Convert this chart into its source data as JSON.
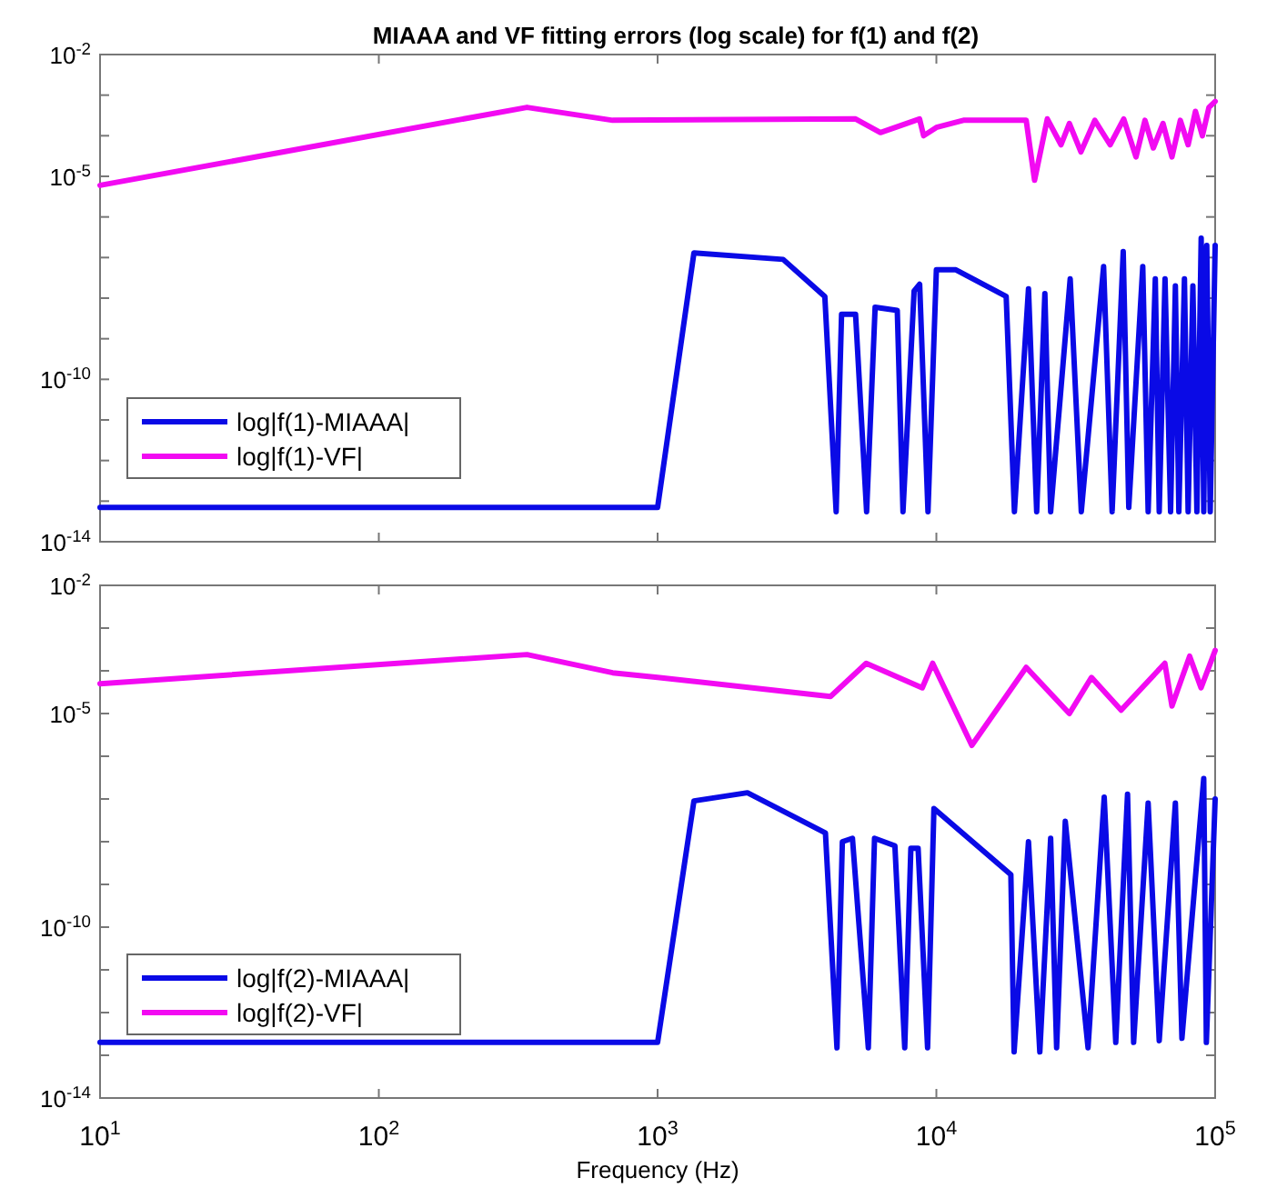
{
  "chart_data": [
    {
      "type": "line",
      "title": "MIAAA and VF fitting errors (log scale) for f(1) and f(2)",
      "log": "xy",
      "legend": "bottom left",
      "tick_labels": "y",
      "xlim": [
        10,
        100000
      ],
      "xticks": [
        {
          "value": 10,
          "label": null
        },
        {
          "value": 100,
          "label": null
        },
        {
          "value": 1000,
          "label": null
        },
        {
          "value": 10000,
          "label": null
        },
        {
          "value": 100000,
          "label": null
        }
      ],
      "ylim": [
        1e-14,
        0.01
      ],
      "yticks": [
        {
          "value": 1e-14,
          "label": "10$^{-14}$"
        },
        {
          "value": 1e-13,
          "label": null
        },
        {
          "value": 1e-12,
          "label": null
        },
        {
          "value": 1e-11,
          "label": null
        },
        {
          "value": 1e-10,
          "label": "10$^{-10}$"
        },
        {
          "value": 1e-09,
          "label": null
        },
        {
          "value": 1e-08,
          "label": null
        },
        {
          "value": 1e-07,
          "label": null
        },
        {
          "value": 1e-06,
          "label": null
        },
        {
          "value": 1e-05,
          "label": "10$^{-5}$"
        },
        {
          "value": 0.0001,
          "label": null
        },
        {
          "value": 0.001,
          "label": null
        },
        {
          "value": 0.01,
          "label": "10$^{-2}$"
        }
      ],
      "series": [
        {
          "name": "log|f(1)-MIAAA|",
          "color": "#0a0ae6",
          "x": [
            10,
            1000,
            1350,
            2820,
            3980,
            4370,
            4570,
            5130,
            5620,
            6030,
            7240,
            7590,
            8320,
            8710,
            9330,
            10000,
            11750,
            17800,
            19050,
            21400,
            22900,
            24500,
            25700,
            30200,
            33100,
            39800,
            42700,
            46800,
            49000,
            55000,
            57500,
            61000,
            63000,
            66100,
            69200,
            72000,
            74100,
            77600,
            80000,
            83200,
            86000,
            89100,
            91000,
            93300,
            96000,
            100000
          ],
          "values": [
            7e-14,
            7e-14,
            1.3e-07,
            9e-08,
            1.1e-08,
            5.5e-14,
            4e-09,
            4e-09,
            5.5e-14,
            6e-09,
            5e-09,
            5.5e-14,
            1.5e-08,
            2.2e-08,
            5.5e-14,
            5e-08,
            5e-08,
            1.1e-08,
            5.5e-14,
            1.7e-08,
            5.5e-14,
            1.3e-08,
            5.5e-14,
            3e-08,
            5.5e-14,
            6e-08,
            5.5e-14,
            1.4e-07,
            7e-14,
            6e-08,
            5.5e-14,
            3e-08,
            5.5e-14,
            3e-08,
            5.5e-14,
            2e-08,
            5.5e-14,
            3e-08,
            5.5e-14,
            2e-08,
            5.5e-14,
            3e-07,
            5.5e-14,
            2e-07,
            5.5e-14,
            2e-07
          ]
        },
        {
          "name": "log|f(1)-VF|",
          "color": "#f20af2",
          "x": [
            10,
            340,
            690,
            5130,
            6300,
            8700,
            9000,
            10000,
            12500,
            21000,
            22500,
            25000,
            28000,
            30000,
            33000,
            37000,
            42000,
            47000,
            52000,
            56000,
            60000,
            65000,
            70000,
            75000,
            80000,
            85000,
            90000,
            95000,
            100000
          ],
          "values": [
            6e-06,
            0.0005,
            0.00024,
            0.00026,
            0.00012,
            0.00026,
            0.0001,
            0.00016,
            0.00024,
            0.00024,
            8e-06,
            0.00026,
            6e-05,
            0.0002,
            4e-05,
            0.00024,
            6e-05,
            0.00026,
            3e-05,
            0.00024,
            5e-05,
            0.0002,
            3e-05,
            0.00024,
            6e-05,
            0.0004,
            0.0001,
            0.0005,
            0.0007
          ]
        }
      ]
    },
    {
      "type": "line",
      "xlabel": "Frequency (Hz)",
      "log": "xy",
      "legend": "bottom left",
      "xlim": [
        10,
        100000
      ],
      "xticks": [
        {
          "value": 10,
          "label": "10$^{1}$"
        },
        {
          "value": 100,
          "label": "10$^{2}$"
        },
        {
          "value": 1000,
          "label": "10$^{3}$"
        },
        {
          "value": 10000,
          "label": "10$^{4}$"
        },
        {
          "value": 100000,
          "label": "10$^{5}$"
        }
      ],
      "ylim": [
        1e-14,
        0.01
      ],
      "yticks": [
        {
          "value": 1e-14,
          "label": "10$^{-14}$"
        },
        {
          "value": 1e-13,
          "label": null
        },
        {
          "value": 1e-12,
          "label": null
        },
        {
          "value": 1e-11,
          "label": null
        },
        {
          "value": 1e-10,
          "label": "10$^{-10}$"
        },
        {
          "value": 1e-09,
          "label": null
        },
        {
          "value": 1e-08,
          "label": null
        },
        {
          "value": 1e-07,
          "label": null
        },
        {
          "value": 1e-06,
          "label": null
        },
        {
          "value": 1e-05,
          "label": "10$^{-5}$"
        },
        {
          "value": 0.0001,
          "label": null
        },
        {
          "value": 0.001,
          "label": null
        },
        {
          "value": 0.01,
          "label": "10$^{-2}$"
        }
      ],
      "series": [
        {
          "name": "log|f(2)-MIAAA|",
          "color": "#0a0ae6",
          "x": [
            10,
            1000,
            1350,
            2100,
            4000,
            4400,
            4600,
            5000,
            5700,
            6000,
            7100,
            7700,
            8100,
            8600,
            9300,
            9800,
            18500,
            19000,
            21400,
            23500,
            25700,
            27000,
            29000,
            35000,
            40000,
            44000,
            48500,
            51000,
            57500,
            63000,
            72000,
            76000,
            91000,
            93000,
            100000
          ],
          "values": [
            2e-13,
            2e-13,
            9e-08,
            1.4e-07,
            1.6e-08,
            1.5e-13,
            1e-08,
            1.2e-08,
            1.5e-13,
            1.2e-08,
            8e-09,
            1.5e-13,
            7e-09,
            7e-09,
            1.5e-13,
            6e-08,
            1.7e-09,
            1.2e-13,
            1e-08,
            1.2e-13,
            1.2e-08,
            1.5e-13,
            3e-08,
            1.5e-13,
            1.1e-07,
            2e-13,
            1.3e-07,
            2e-13,
            8e-08,
            2.2e-13,
            8e-08,
            2.5e-13,
            3e-07,
            2e-13,
            1e-07
          ]
        },
        {
          "name": "log|f(2)-VF|",
          "color": "#f20af2",
          "x": [
            10,
            340,
            690,
            1000,
            4170,
            5600,
            8900,
            9700,
            13400,
            21000,
            30000,
            36000,
            46000,
            66000,
            70000,
            81000,
            89000,
            100000
          ],
          "values": [
            5e-05,
            0.00024,
            9e-05,
            7e-05,
            2.5e-05,
            0.00015,
            4e-05,
            0.00015,
            1.8e-06,
            0.00012,
            1e-05,
            7e-05,
            1.2e-05,
            0.00015,
            1.5e-05,
            0.00022,
            4e-05,
            0.0003
          ]
        }
      ]
    }
  ]
}
